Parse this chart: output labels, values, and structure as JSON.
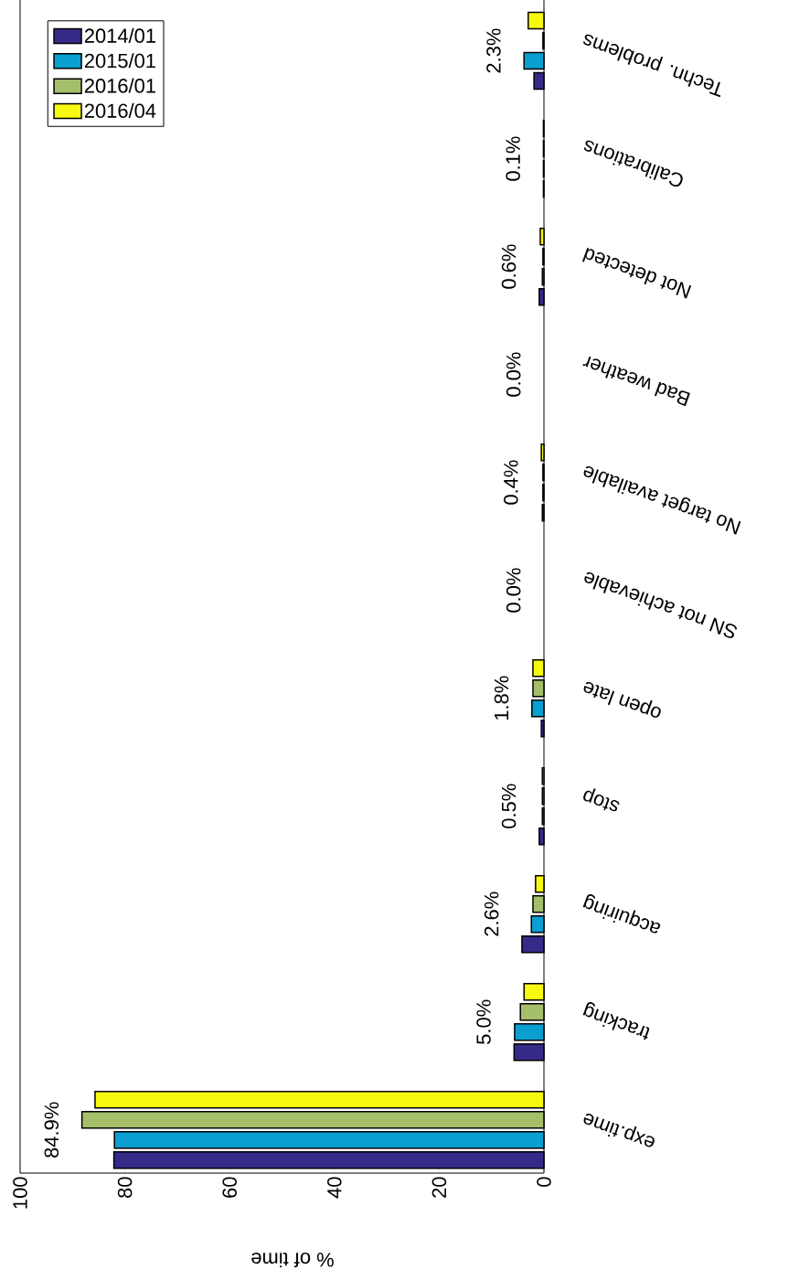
{
  "chart_data": {
    "type": "bar",
    "orientation": "horizontal",
    "xlabel": "% of time",
    "categories": [
      "Techn. problems",
      "Calibrations",
      "Not detected",
      "Bad weather",
      "No target available",
      "SN not achievable",
      "open late",
      "stop",
      "acquiring",
      "tracking",
      "exp.time"
    ],
    "series": [
      {
        "name": "2014/01",
        "color": "#352a87",
        "values": [
          1.9,
          0.1,
          0.9,
          null,
          0.3,
          null,
          0.5,
          0.9,
          4.2,
          5.7,
          82.1
        ]
      },
      {
        "name": "2015/01",
        "color": "#0a9fd0",
        "values": [
          3.8,
          0.1,
          0.3,
          null,
          0.2,
          null,
          2.3,
          0.3,
          2.4,
          5.6,
          82
        ]
      },
      {
        "name": "2016/01",
        "color": "#a5be6a",
        "values": [
          0.2,
          0.1,
          0.2,
          null,
          0.2,
          null,
          2.1,
          0.3,
          2.1,
          4.5,
          88.2
        ]
      },
      {
        "name": "2016/04",
        "color": "#f8f910",
        "values": [
          3.0,
          0.1,
          0.7,
          null,
          0.5,
          null,
          2.1,
          0.3,
          1.6,
          3.8,
          85.7
        ]
      }
    ],
    "xlim": [
      100,
      0
    ],
    "xticks": [
      0,
      20,
      40,
      60,
      80,
      100
    ],
    "legend": "top left",
    "annotations": [
      "2.3%",
      "0.1%",
      "0.6%",
      "0.0%",
      "0.4%",
      "0.0%",
      "1.8%",
      "0.5%",
      "2.6%",
      "5.0%",
      "84.9%"
    ]
  }
}
